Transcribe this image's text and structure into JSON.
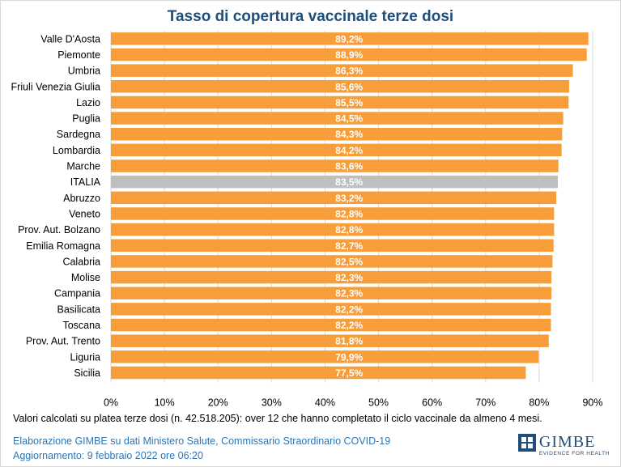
{
  "colors": {
    "bar": "#f79d3a",
    "highlight_bar": "#bfbfbf",
    "title": "#1f4e79",
    "footer": "#2e75b6",
    "grid": "#d9d9d9"
  },
  "chart_data": {
    "type": "bar",
    "orientation": "horizontal",
    "title": "Tasso di copertura vaccinale terze dosi",
    "xlim": [
      0,
      90
    ],
    "xticks": [
      0,
      10,
      20,
      30,
      40,
      50,
      60,
      70,
      80,
      90
    ],
    "xtick_labels": [
      "0%",
      "10%",
      "20%",
      "30%",
      "40%",
      "50%",
      "60%",
      "70%",
      "80%",
      "90%"
    ],
    "grid": true,
    "highlight_category": "ITALIA",
    "categories": [
      "Valle D'Aosta",
      "Piemonte",
      "Umbria",
      "Friuli Venezia Giulia",
      "Lazio",
      "Puglia",
      "Sardegna",
      "Lombardia",
      "Marche",
      "ITALIA",
      "Abruzzo",
      "Veneto",
      "Prov. Aut. Bolzano",
      "Emilia Romagna",
      "Calabria",
      "Molise",
      "Campania",
      "Basilicata",
      "Toscana",
      "Prov. Aut. Trento",
      "Liguria",
      "Sicilia"
    ],
    "values": [
      89.2,
      88.9,
      86.3,
      85.6,
      85.5,
      84.5,
      84.3,
      84.2,
      83.6,
      83.5,
      83.2,
      82.8,
      82.8,
      82.7,
      82.5,
      82.3,
      82.3,
      82.2,
      82.2,
      81.8,
      79.9,
      77.5
    ],
    "value_labels": [
      "89,2%",
      "88,9%",
      "86,3%",
      "85,6%",
      "85,5%",
      "84,5%",
      "84,3%",
      "84,2%",
      "83,6%",
      "83,5%",
      "83,2%",
      "82,8%",
      "82,8%",
      "82,7%",
      "82,5%",
      "82,3%",
      "82,3%",
      "82,2%",
      "82,2%",
      "81,8%",
      "79,9%",
      "77,5%"
    ]
  },
  "note": "Valori calcolati su platea terze dosi (n. 42.518.205): over 12 che hanno completato il ciclo vaccinale da almeno 4 mesi.",
  "footer": {
    "source": "Elaborazione GIMBE su dati Ministero Salute, Commissario Straordinario COVID-19",
    "updated": "Aggiornamento: 9 febbraio 2022 ore 06:20"
  },
  "logo": {
    "name": "GIMBE",
    "tagline": "EVIDENCE FOR HEALTH",
    "icon": "gimbe-logo-icon"
  }
}
